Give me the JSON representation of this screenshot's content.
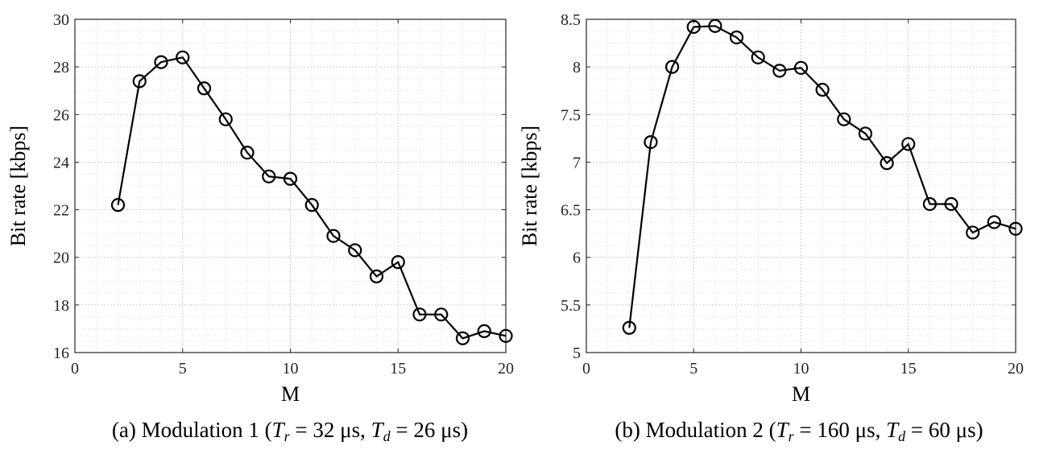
{
  "chart_data": [
    {
      "type": "line",
      "panel": "a",
      "caption": {
        "prefix": "(a) Modulation 1 (",
        "tr_symbol": "T",
        "tr_sub": "r",
        "tr_rest": " = 32 μs, ",
        "td_symbol": "T",
        "td_sub": "d",
        "td_rest": " = 26 μs)"
      },
      "xlabel": "M",
      "ylabel": "Bit rate [kbps]",
      "xlim": [
        0,
        20
      ],
      "ylim": [
        16,
        30
      ],
      "xticks": [
        0,
        5,
        10,
        15,
        20
      ],
      "yticks": [
        16,
        18,
        20,
        22,
        24,
        26,
        28,
        30
      ],
      "ytick_labels": [
        "16",
        "18",
        "20",
        "22",
        "24",
        "26",
        "28",
        "30"
      ],
      "grid": true,
      "series": [
        {
          "name": "Bit rate",
          "x": [
            2,
            3,
            4,
            5,
            6,
            7,
            8,
            9,
            10,
            11,
            12,
            13,
            14,
            15,
            16,
            17,
            18,
            19,
            20
          ],
          "values": [
            22.2,
            27.4,
            28.2,
            28.4,
            27.1,
            25.8,
            24.4,
            23.4,
            23.3,
            22.2,
            20.9,
            20.3,
            19.2,
            19.8,
            17.6,
            17.6,
            16.6,
            16.9,
            16.7
          ]
        }
      ]
    },
    {
      "type": "line",
      "panel": "b",
      "caption": {
        "prefix": "(b) Modulation 2 (",
        "tr_symbol": "T",
        "tr_sub": "r",
        "tr_rest": " = 160 μs, ",
        "td_symbol": "T",
        "td_sub": "d",
        "td_rest": " = 60 μs)"
      },
      "xlabel": "M",
      "ylabel": "Bit rate [kbps]",
      "xlim": [
        0,
        20
      ],
      "ylim": [
        5,
        8.5
      ],
      "xticks": [
        0,
        5,
        10,
        15,
        20
      ],
      "yticks": [
        5,
        5.5,
        6,
        6.5,
        7,
        7.5,
        8,
        8.5
      ],
      "ytick_labels": [
        "5",
        "5.5",
        "6",
        "6.5",
        "7",
        "7.5",
        "8",
        "8.5"
      ],
      "grid": true,
      "series": [
        {
          "name": "Bit rate",
          "x": [
            2,
            3,
            4,
            5,
            6,
            7,
            8,
            9,
            10,
            11,
            12,
            13,
            14,
            15,
            16,
            17,
            18,
            19,
            20
          ],
          "values": [
            5.26,
            7.21,
            8.0,
            8.42,
            8.43,
            8.31,
            8.1,
            7.96,
            7.99,
            7.76,
            7.45,
            7.3,
            6.99,
            7.19,
            6.56,
            6.56,
            6.26,
            6.37,
            6.3
          ]
        }
      ]
    }
  ]
}
